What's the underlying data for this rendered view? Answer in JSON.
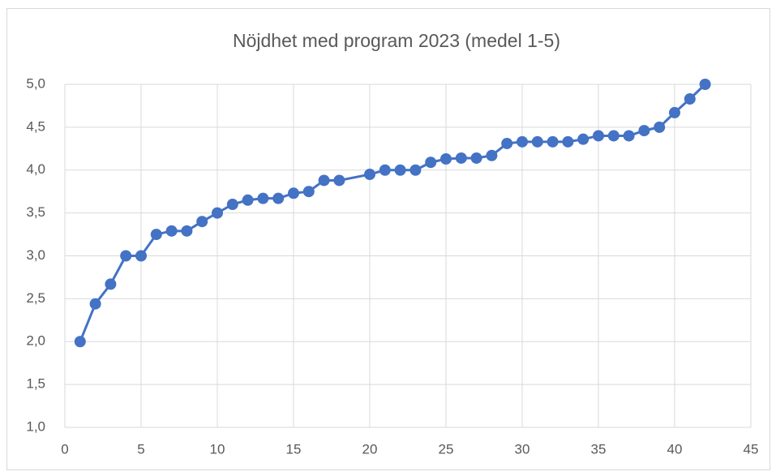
{
  "chart_data": {
    "type": "line",
    "title": "Nöjdhet med program 2023 (medel 1-5)",
    "x": [
      1,
      2,
      3,
      4,
      5,
      6,
      7,
      8,
      9,
      10,
      11,
      12,
      13,
      14,
      15,
      16,
      17,
      18,
      20,
      21,
      22,
      23,
      24,
      25,
      26,
      27,
      28,
      29,
      30,
      31,
      32,
      33,
      34,
      35,
      36,
      37,
      38,
      39,
      40,
      41,
      42
    ],
    "values": [
      2.0,
      2.44,
      2.67,
      3.0,
      3.0,
      3.25,
      3.29,
      3.29,
      3.4,
      3.5,
      3.6,
      3.65,
      3.67,
      3.67,
      3.73,
      3.75,
      3.88,
      3.88,
      3.95,
      4.0,
      4.0,
      4.0,
      4.09,
      4.13,
      4.14,
      4.14,
      4.17,
      4.31,
      4.33,
      4.33,
      4.33,
      4.33,
      4.36,
      4.4,
      4.4,
      4.4,
      4.46,
      4.5,
      4.67,
      4.83,
      5.0
    ],
    "color": "#4472c4",
    "xlim": [
      0,
      45
    ],
    "xticks": [
      0,
      5,
      10,
      15,
      20,
      25,
      30,
      35,
      40,
      45
    ],
    "ylim": [
      1,
      5
    ],
    "yticks": [
      {
        "value": 1,
        "label": "1,0"
      },
      {
        "value": 1.5,
        "label": "1,5"
      },
      {
        "value": 2,
        "label": "2,0"
      },
      {
        "value": 2.5,
        "label": "2,5"
      },
      {
        "value": 3,
        "label": "3,0"
      },
      {
        "value": 3.5,
        "label": "3,5"
      },
      {
        "value": 4,
        "label": "4,0"
      },
      {
        "value": 4.5,
        "label": "4,5"
      },
      {
        "value": 5,
        "label": "5,0"
      }
    ],
    "grid": true
  }
}
